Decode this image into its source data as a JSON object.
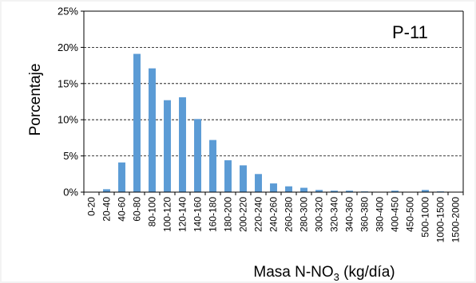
{
  "chart_data": {
    "type": "bar",
    "title": "",
    "panel_label": "P-11",
    "ylabel": "Porcentaje",
    "xlabel_main": "Masa N-NO",
    "xlabel_sub": "3",
    "xlabel_unit": " (kg/día)",
    "ylim": [
      0,
      25
    ],
    "yticks": [
      0,
      5,
      10,
      15,
      20,
      25
    ],
    "ytick_labels": [
      "0%",
      "5%",
      "10%",
      "15%",
      "20%",
      "25%"
    ],
    "grid": "horizontal dashed",
    "categories": [
      "0-20",
      "20-40",
      "40-60",
      "60-80",
      "80-100",
      "100-120",
      "120-140",
      "140-160",
      "160-180",
      "180-200",
      "200-220",
      "220-240",
      "240-260",
      "260-280",
      "280-300",
      "300-320",
      "320-340",
      "340-360",
      "360-380",
      "380-400",
      "400-450",
      "450-500",
      "500-1000",
      "1000-1500",
      "1500-2000"
    ],
    "values": [
      0,
      0.4,
      4.1,
      19.1,
      17.1,
      12.7,
      13.1,
      10.1,
      7.2,
      4.4,
      3.7,
      2.5,
      1.2,
      0.8,
      0.6,
      0.3,
      0.2,
      0.2,
      0.1,
      0,
      0.2,
      0,
      0.3,
      0.1,
      0
    ],
    "bar_color": "#5b9bd5"
  }
}
